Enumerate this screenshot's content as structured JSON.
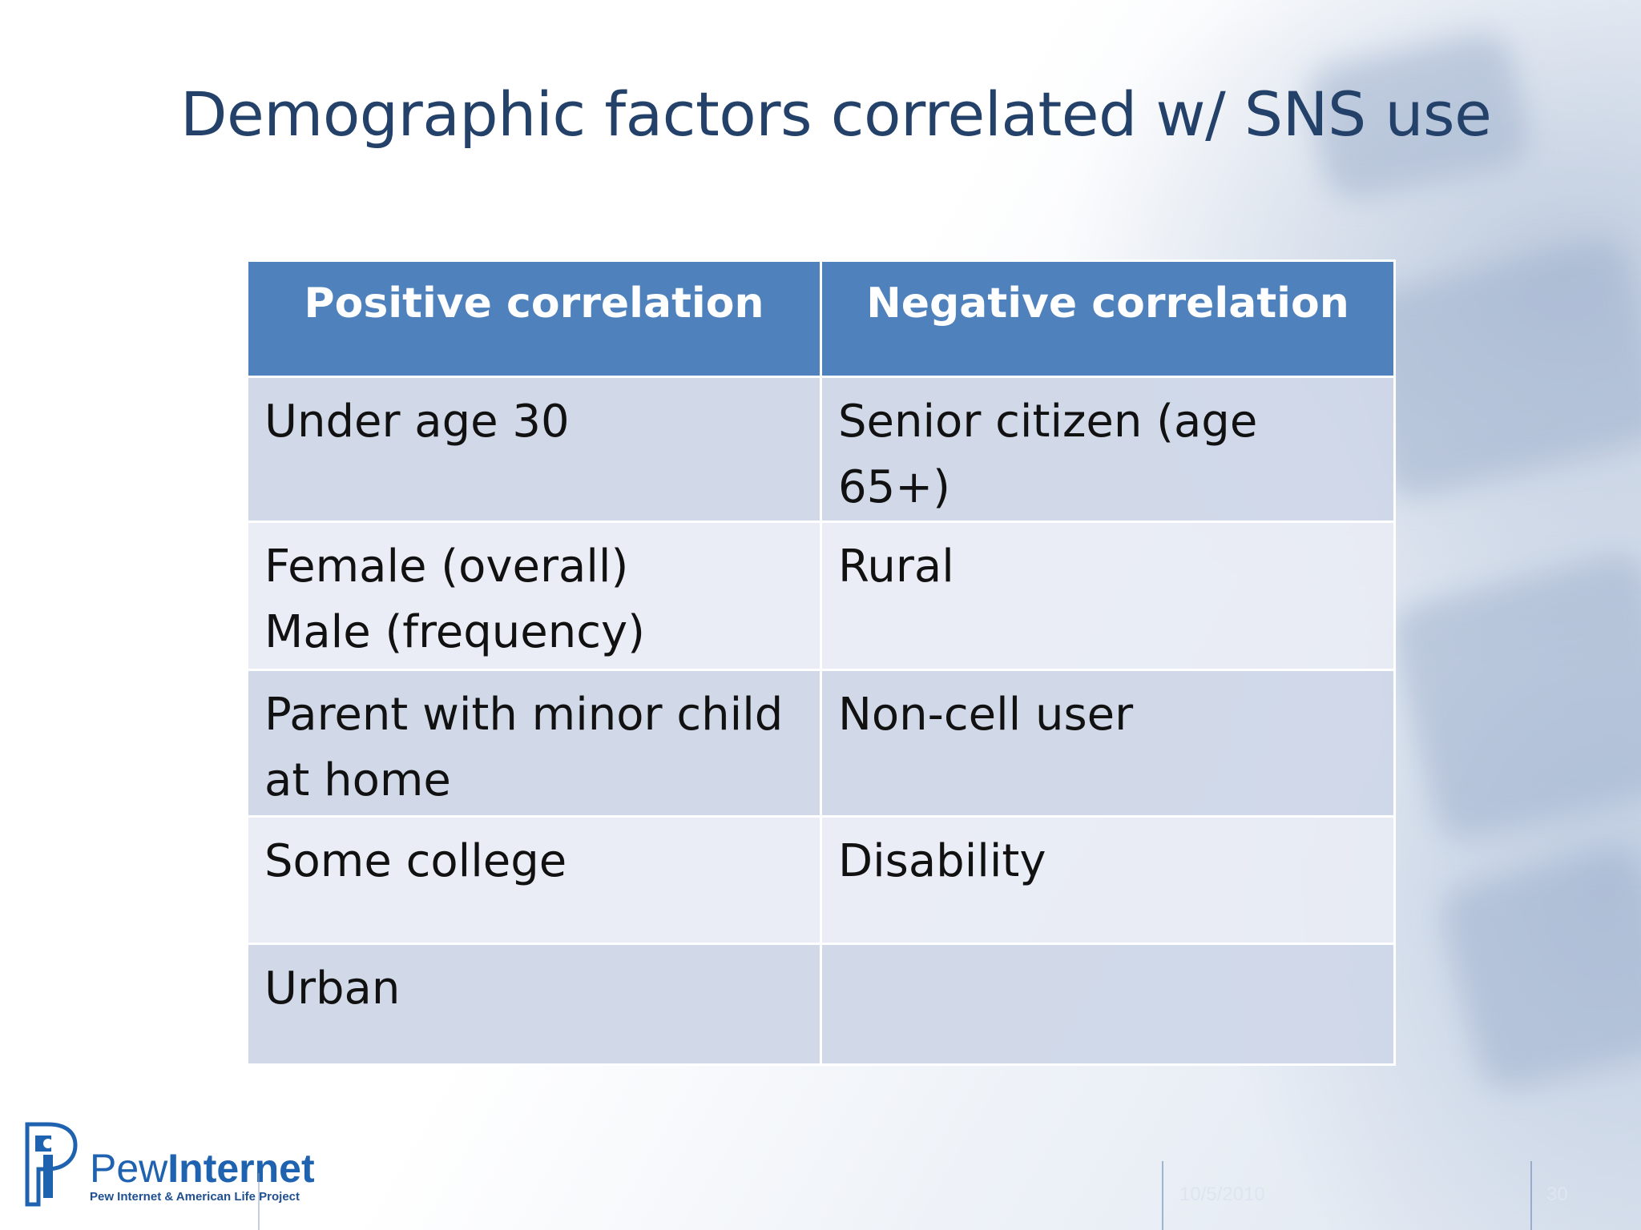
{
  "slide": {
    "title": "Demographic factors correlated w/ SNS use"
  },
  "table": {
    "headers": {
      "positive": "Positive correlation",
      "negative": "Negative correlation"
    },
    "rows": [
      {
        "positive": "Under age 30",
        "negative": "Senior citizen (age 65+)"
      },
      {
        "positive": "Female (overall)\nMale (frequency)",
        "negative": "Rural"
      },
      {
        "positive": "Parent with minor child\nat home",
        "negative": "Non-cell user"
      },
      {
        "positive": "Some college",
        "negative": "Disability"
      },
      {
        "positive": "Urban",
        "negative": ""
      }
    ]
  },
  "logo": {
    "word_light": "Pew",
    "word_bold": "Internet",
    "subtitle": "Pew Internet & American Life Project",
    "icon": "pew-logo-icon"
  },
  "footer": {
    "date": "10/5/2010",
    "page_number": "30"
  },
  "colors": {
    "title": "#24416a",
    "header_fill": "#4f81bd",
    "row_odd_fill": "#cfd7e8",
    "row_even_fill": "#e8ecf4",
    "logo_blue": "#1f63b0"
  }
}
